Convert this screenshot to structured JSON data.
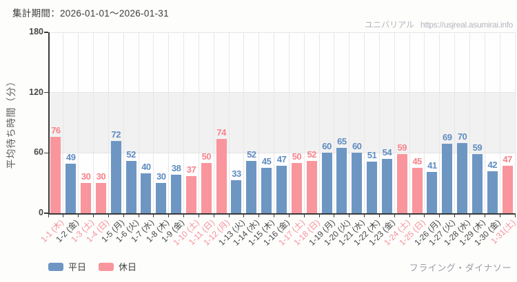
{
  "header": {
    "title": "集計期間：2026-01-01～2026-01-31",
    "brand": "ユニバリアル",
    "url": "https://usjreal.asumirai.info"
  },
  "footer": {
    "attraction": "フライング・ダイナソー"
  },
  "legend": {
    "items": [
      {
        "key": "weekday",
        "label": "平日",
        "color": "#6d96c3"
      },
      {
        "key": "holiday",
        "label": "休日",
        "color": "#f9959c"
      }
    ]
  },
  "colors": {
    "weekday_bar": "#6d96c3",
    "holiday_bar": "#f9959c",
    "weekday_value_label": "#5e8cc0",
    "holiday_value_label": "#f8828b",
    "weekday_tick_label": "#454545",
    "holiday_tick_label": "#f7919a",
    "band": "#f1f1f1",
    "grid": "#e7e7e7",
    "axis": "#3a3a3a"
  },
  "chart_data": {
    "type": "bar",
    "title": "",
    "xlabel": "",
    "ylabel": "平均待ち時間（分）",
    "ylim": [
      0,
      180
    ],
    "yticks": [
      0,
      60,
      120,
      180
    ],
    "grid": "vertical",
    "plot_band": {
      "from": 60,
      "to": 120
    },
    "legend_position": "bottom-left",
    "categories": [
      "1-1 (木)",
      "1-2 (金)",
      "1-3 (土)",
      "1-4 (日)",
      "1-5 (月)",
      "1-6 (火)",
      "1-7 (水)",
      "1-8 (木)",
      "1-9 (金)",
      "1-10 (土)",
      "1-11 (日)",
      "1-12 (月)",
      "1-13 (火)",
      "1-14 (水)",
      "1-15 (木)",
      "1-16 (金)",
      "1-17 (土)",
      "1-18 (日)",
      "1-19 (月)",
      "1-20 (火)",
      "1-21 (水)",
      "1-22 (木)",
      "1-23 (金)",
      "1-24 (土)",
      "1-25 (日)",
      "1-26 (月)",
      "1-27 (火)",
      "1-28 (水)",
      "1-29 (木)",
      "1-30 (金)",
      "1-31(土)"
    ],
    "values": [
      76,
      49,
      30,
      30,
      72,
      52,
      40,
      30,
      38,
      37,
      50,
      74,
      33,
      52,
      45,
      47,
      50,
      52,
      60,
      65,
      60,
      51,
      54,
      59,
      45,
      41,
      69,
      70,
      59,
      42,
      47
    ],
    "day_type": [
      "holiday",
      "weekday",
      "holiday",
      "holiday",
      "weekday",
      "weekday",
      "weekday",
      "weekday",
      "weekday",
      "holiday",
      "holiday",
      "holiday",
      "weekday",
      "weekday",
      "weekday",
      "weekday",
      "holiday",
      "holiday",
      "weekday",
      "weekday",
      "weekday",
      "weekday",
      "weekday",
      "holiday",
      "holiday",
      "weekday",
      "weekday",
      "weekday",
      "weekday",
      "weekday",
      "holiday"
    ]
  }
}
